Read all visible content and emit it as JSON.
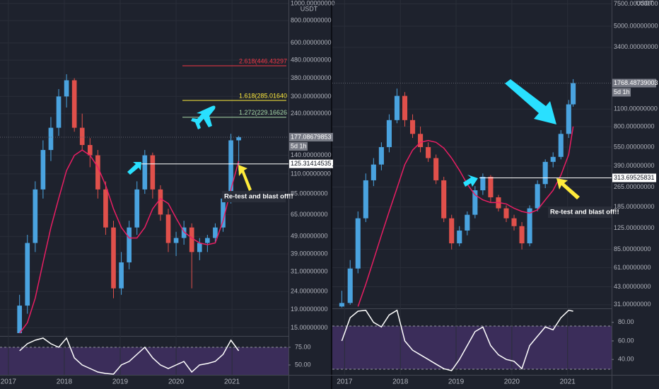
{
  "chart_data": [
    {
      "type": "candlestick",
      "log_scale": true,
      "grid": true,
      "unit": "USDT",
      "countdown": "5d 1h",
      "up_color": "#4aa3df",
      "down_color": "#e0504b",
      "ma_color": "#e91e63",
      "rsi_color": "#ffffff",
      "xlim": [
        2016.85,
        2022.01
      ],
      "xticks": [
        2017,
        2018,
        2019,
        2020,
        2021
      ],
      "ylim": [
        13.5,
        1046
      ],
      "yticks": [
        {
          "value": 1000,
          "label": "1000.00000000"
        },
        {
          "value": 800,
          "label": "800.00000000"
        },
        {
          "value": 600,
          "label": "600.00000000"
        },
        {
          "value": 480,
          "label": "480.00000000"
        },
        {
          "value": 380,
          "label": "380.00000000"
        },
        {
          "value": 300,
          "label": "300.00000000"
        },
        {
          "value": 240,
          "label": "240.00000000"
        },
        {
          "value": 140,
          "label": "140.00000000"
        },
        {
          "value": 110,
          "label": "110.00000000"
        },
        {
          "value": 85,
          "label": "85.00000000"
        },
        {
          "value": 65,
          "label": "65.00000000"
        },
        {
          "value": 49,
          "label": "49.00000000"
        },
        {
          "value": 39,
          "label": "39.00000000"
        },
        {
          "value": 31,
          "label": "31.00000000"
        },
        {
          "value": 24,
          "label": "24.00000000"
        },
        {
          "value": 19,
          "label": "19.00000000"
        },
        {
          "value": 15,
          "label": "15.00000000"
        }
      ],
      "x": [
        2017.2,
        2017.34,
        2017.48,
        2017.62,
        2017.76,
        2017.9,
        2018.04,
        2018.18,
        2018.32,
        2018.46,
        2018.6,
        2018.74,
        2018.88,
        2019.02,
        2019.16,
        2019.3,
        2019.44,
        2019.58,
        2019.72,
        2019.86,
        2020.0,
        2020.14,
        2020.28,
        2020.42,
        2020.56,
        2020.7,
        2020.84,
        2020.98,
        2021.12
      ],
      "open": [
        14,
        20,
        45,
        90,
        150,
        200,
        300,
        370,
        200,
        160,
        140,
        90,
        55,
        25,
        35,
        55,
        90,
        140,
        90,
        65,
        45,
        48,
        55,
        40,
        45,
        48,
        55,
        80,
        170
      ],
      "high": [
        23,
        50,
        100,
        170,
        230,
        330,
        400,
        380,
        240,
        175,
        150,
        100,
        60,
        40,
        60,
        100,
        150,
        145,
        95,
        70,
        52,
        60,
        58,
        48,
        50,
        58,
        85,
        185,
        180
      ],
      "low": [
        14,
        18,
        40,
        80,
        130,
        180,
        260,
        190,
        150,
        120,
        80,
        50,
        22,
        23,
        32,
        50,
        85,
        80,
        60,
        40,
        38,
        44,
        25,
        36,
        40,
        45,
        52,
        75,
        115
      ],
      "close": [
        20,
        45,
        90,
        150,
        200,
        300,
        370,
        200,
        160,
        140,
        90,
        55,
        25,
        35,
        55,
        90,
        140,
        90,
        65,
        45,
        48,
        55,
        40,
        45,
        48,
        55,
        80,
        170,
        177.09
      ],
      "ma": [
        14,
        16,
        22,
        35,
        55,
        80,
        115,
        140,
        150,
        140,
        120,
        95,
        70,
        55,
        48,
        48,
        55,
        70,
        80,
        75,
        62,
        52,
        48,
        45,
        44,
        45,
        60,
        90,
        130
      ],
      "rsi": {
        "ylim": [
          36,
          90
        ],
        "yticks": [
          {
            "value": 75,
            "label": "75.00"
          },
          {
            "value": 50,
            "label": "50.00"
          }
        ],
        "values": [
          70,
          80,
          85,
          88,
          80,
          75,
          88,
          60,
          50,
          45,
          40,
          38,
          37,
          50,
          55,
          65,
          75,
          60,
          50,
          45,
          50,
          55,
          40,
          50,
          52,
          55,
          65,
          85,
          70
        ]
      },
      "last_price": {
        "value": 177.08679853,
        "label": "177.08679853"
      },
      "level": {
        "value": 125.31414535,
        "label": "125.31414535"
      },
      "fib_levels": [
        {
          "value": 446.43297,
          "label": "2.618(446.43297",
          "color": "#f23645"
        },
        {
          "value": 285.0164,
          "label": "1.618(285.01640",
          "color": "#ffeb3b"
        },
        {
          "value": 229.16626,
          "label": "1.272(229.16626",
          "color": "#a5d6a7"
        }
      ],
      "annotations": [
        "Re-test and blast off!!"
      ]
    },
    {
      "type": "candlestick",
      "log_scale": true,
      "grid": true,
      "unit": "USDT",
      "countdown": "5d 1h",
      "up_color": "#4aa3df",
      "down_color": "#e0504b",
      "ma_color": "#e91e63",
      "rsi_color": "#ffffff",
      "xlim": [
        2016.78,
        2021.79
      ],
      "xticks": [
        2017,
        2018,
        2019,
        2020,
        2021
      ],
      "ylim": [
        29,
        8054
      ],
      "yticks": [
        {
          "value": 7500,
          "label": "7500.00000000"
        },
        {
          "value": 5000,
          "label": "5000.00000000"
        },
        {
          "value": 3400,
          "label": "3400.00000000"
        },
        {
          "value": 1100,
          "label": "1100.00000000"
        },
        {
          "value": 800,
          "label": "800.00000000"
        },
        {
          "value": 550,
          "label": "550.00000000"
        },
        {
          "value": 390,
          "label": "390.00000000"
        },
        {
          "value": 265,
          "label": "265.00000000"
        },
        {
          "value": 185,
          "label": "185.00000000"
        },
        {
          "value": 125,
          "label": "125.00000000"
        },
        {
          "value": 85,
          "label": "85.00000000"
        },
        {
          "value": 61,
          "label": "61.00000000"
        },
        {
          "value": 43,
          "label": "43.00000000"
        },
        {
          "value": 31,
          "label": "31.00000000"
        }
      ],
      "x": [
        2016.95,
        2017.1,
        2017.24,
        2017.38,
        2017.52,
        2017.66,
        2017.8,
        2017.94,
        2018.08,
        2018.22,
        2018.36,
        2018.5,
        2018.64,
        2018.78,
        2018.92,
        2019.06,
        2019.2,
        2019.34,
        2019.48,
        2019.62,
        2019.76,
        2019.9,
        2020.04,
        2020.18,
        2020.32,
        2020.46,
        2020.6,
        2020.74,
        2020.88,
        2021.02,
        2021.1
      ],
      "open": [
        30,
        32,
        60,
        150,
        300,
        400,
        550,
        900,
        1400,
        900,
        700,
        550,
        450,
        300,
        150,
        95,
        120,
        160,
        250,
        320,
        220,
        180,
        150,
        130,
        95,
        180,
        280,
        420,
        460,
        700,
        1200
      ],
      "high": [
        40,
        70,
        170,
        340,
        450,
        600,
        1000,
        1600,
        1500,
        1000,
        800,
        600,
        480,
        320,
        160,
        130,
        170,
        270,
        340,
        330,
        230,
        190,
        160,
        140,
        190,
        300,
        440,
        500,
        750,
        1300,
        1900
      ],
      "low": [
        29.5,
        31,
        55,
        140,
        270,
        360,
        500,
        850,
        800,
        650,
        500,
        420,
        280,
        140,
        85,
        90,
        110,
        150,
        230,
        200,
        170,
        140,
        120,
        85,
        90,
        170,
        260,
        380,
        440,
        650,
        1150
      ],
      "close": [
        32,
        60,
        150,
        300,
        400,
        550,
        900,
        1400,
        900,
        700,
        550,
        450,
        300,
        150,
        95,
        120,
        160,
        250,
        320,
        220,
        180,
        150,
        130,
        95,
        180,
        280,
        420,
        460,
        700,
        1200,
        1768.49
      ],
      "ma": [
        null,
        null,
        30,
        45,
        70,
        110,
        170,
        260,
        400,
        520,
        600,
        620,
        600,
        540,
        450,
        360,
        280,
        230,
        210,
        200,
        200,
        195,
        180,
        170,
        165,
        175,
        210,
        250,
        330,
        480,
        800
      ],
      "rsi": {
        "ylim": [
          23.4,
          94.3
        ],
        "yticks": [
          {
            "value": 80,
            "label": "80.00"
          },
          {
            "value": 60,
            "label": "60.00"
          },
          {
            "value": 40,
            "label": "40.00"
          }
        ],
        "values": [
          60,
          85,
          92,
          93,
          80,
          75,
          88,
          93,
          60,
          50,
          45,
          40,
          35,
          30,
          28,
          40,
          55,
          70,
          75,
          55,
          45,
          40,
          38,
          30,
          55,
          65,
          75,
          72,
          85,
          93,
          92
        ]
      },
      "last_price": {
        "value": 1768.48739003,
        "label": "1768.48739003"
      },
      "level": {
        "value": 313.69525831,
        "label": "313.69525831"
      },
      "fib_levels": [],
      "annotations": [
        "Re-test and blast off!!"
      ]
    }
  ]
}
